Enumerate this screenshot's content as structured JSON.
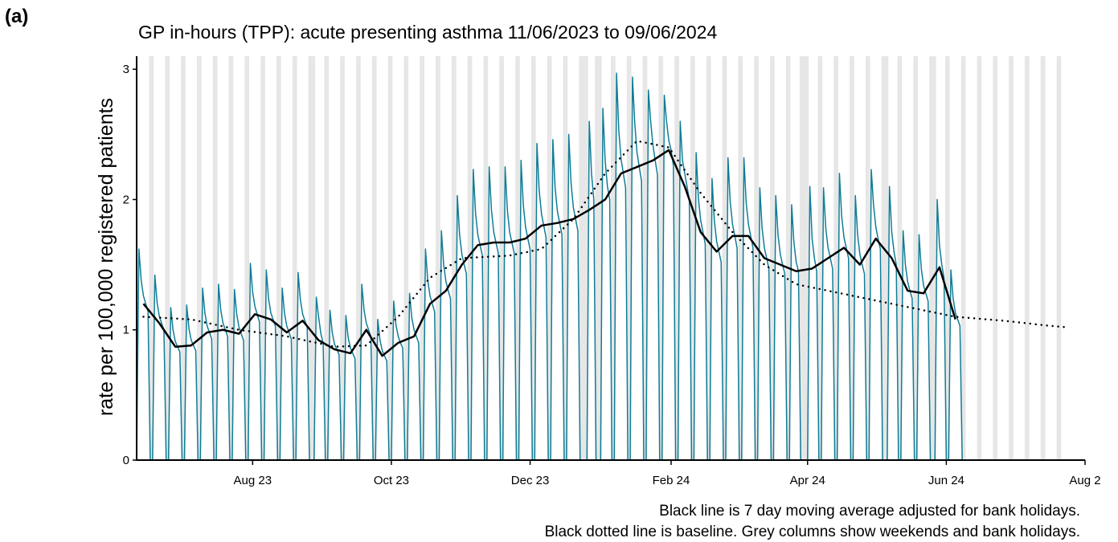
{
  "chart_data": {
    "type": "line",
    "panel_label": "(a)",
    "title": "GP in-hours (TPP): acute presenting asthma 11/06/2023 to 09/06/2024",
    "y_label": "rate per 100,000 registered patients",
    "notes": [
      "Black line is 7 day moving average adjusted for bank holidays.",
      "Black dotted line is baseline. Grey columns show weekends and bank holidays."
    ],
    "xlim": [
      "2023-06-11",
      "2024-08-01"
    ],
    "xticks": [
      {
        "value": "2023-08-01",
        "label": "Aug 23"
      },
      {
        "value": "2023-10-01",
        "label": "Oct 23"
      },
      {
        "value": "2023-12-01",
        "label": "Dec 23"
      },
      {
        "value": "2024-02-01",
        "label": "Feb 24"
      },
      {
        "value": "2024-04-01",
        "label": "Apr 24"
      },
      {
        "value": "2024-06-01",
        "label": "Jun 24"
      },
      {
        "value": "2024-08-01",
        "label": "Aug 2"
      }
    ],
    "ylim": [
      0,
      3.1
    ],
    "yticks": [
      0,
      1,
      2,
      3
    ],
    "shading_color": "#e6e6e6",
    "bank_holidays": [
      "2023-08-28",
      "2023-12-25",
      "2023-12-26",
      "2024-01-01",
      "2024-03-29",
      "2024-04-01",
      "2024-05-06",
      "2024-05-27"
    ],
    "series": [
      {
        "color": "#107d96",
        "style": "solid",
        "width": 1.5,
        "x": [
          "2023-06-11",
          "2023-06-12",
          "2023-06-13",
          "2023-06-14",
          "2023-06-15",
          "2023-06-16",
          "2023-06-17",
          "2023-06-18",
          "2023-06-19",
          "2023-06-20",
          "2023-06-21",
          "2023-06-22",
          "2023-06-23",
          "2023-06-24",
          "2023-06-25",
          "2023-06-26",
          "2023-06-27",
          "2023-06-28",
          "2023-06-29",
          "2023-06-30",
          "2023-07-01",
          "2023-07-02",
          "2023-07-03",
          "2023-07-04",
          "2023-07-05",
          "2023-07-06",
          "2023-07-07",
          "2023-07-08",
          "2023-07-09",
          "2023-07-10",
          "2023-07-11",
          "2023-07-12",
          "2023-07-13",
          "2023-07-14",
          "2023-07-15",
          "2023-07-16",
          "2023-07-17",
          "2023-07-18",
          "2023-07-19",
          "2023-07-20",
          "2023-07-21",
          "2023-07-22",
          "2023-07-23",
          "2023-07-24",
          "2023-07-25",
          "2023-07-26",
          "2023-07-27",
          "2023-07-28",
          "2023-07-29",
          "2023-07-30",
          "2023-07-31",
          "2023-08-01",
          "2023-08-02",
          "2023-08-03",
          "2023-08-04",
          "2023-08-05",
          "2023-08-06",
          "2023-08-07",
          "2023-08-08",
          "2023-08-09",
          "2023-08-10",
          "2023-08-11",
          "2023-08-12",
          "2023-08-13",
          "2023-08-14",
          "2023-08-15",
          "2023-08-16",
          "2023-08-17",
          "2023-08-18",
          "2023-08-19",
          "2023-08-20",
          "2023-08-21",
          "2023-08-22",
          "2023-08-23",
          "2023-08-24",
          "2023-08-25",
          "2023-08-26",
          "2023-08-27",
          "2023-08-28",
          "2023-08-29",
          "2023-08-30",
          "2023-08-31",
          "2023-09-01",
          "2023-09-02",
          "2023-09-03",
          "2023-09-04",
          "2023-09-05",
          "2023-09-06",
          "2023-09-07",
          "2023-09-08",
          "2023-09-09",
          "2023-09-10",
          "2023-09-11",
          "2023-09-12",
          "2023-09-13",
          "2023-09-14",
          "2023-09-15",
          "2023-09-16",
          "2023-09-17",
          "2023-09-18",
          "2023-09-19",
          "2023-09-20",
          "2023-09-21",
          "2023-09-22",
          "2023-09-23",
          "2023-09-24",
          "2023-09-25",
          "2023-09-26",
          "2023-09-27",
          "2023-09-28",
          "2023-09-29",
          "2023-09-30",
          "2023-10-01",
          "2023-10-02",
          "2023-10-03",
          "2023-10-04",
          "2023-10-05",
          "2023-10-06",
          "2023-10-07",
          "2023-10-08",
          "2023-10-09",
          "2023-10-10",
          "2023-10-11",
          "2023-10-12",
          "2023-10-13",
          "2023-10-14",
          "2023-10-15",
          "2023-10-16",
          "2023-10-17",
          "2023-10-18",
          "2023-10-19",
          "2023-10-20",
          "2023-10-21",
          "2023-10-22",
          "2023-10-23",
          "2023-10-24",
          "2023-10-25",
          "2023-10-26",
          "2023-10-27",
          "2023-10-28",
          "2023-10-29",
          "2023-10-30",
          "2023-10-31",
          "2023-11-01",
          "2023-11-02",
          "2023-11-03",
          "2023-11-04",
          "2023-11-05",
          "2023-11-06",
          "2023-11-07",
          "2023-11-08",
          "2023-11-09",
          "2023-11-10",
          "2023-11-11",
          "2023-11-12",
          "2023-11-13",
          "2023-11-14",
          "2023-11-15",
          "2023-11-16",
          "2023-11-17",
          "2023-11-18",
          "2023-11-19",
          "2023-11-20",
          "2023-11-21",
          "2023-11-22",
          "2023-11-23",
          "2023-11-24",
          "2023-11-25",
          "2023-11-26",
          "2023-11-27",
          "2023-11-28",
          "2023-11-29",
          "2023-11-30",
          "2023-12-01",
          "2023-12-02",
          "2023-12-03",
          "2023-12-04",
          "2023-12-05",
          "2023-12-06",
          "2023-12-07",
          "2023-12-08",
          "2023-12-09",
          "2023-12-10",
          "2023-12-11",
          "2023-12-12",
          "2023-12-13",
          "2023-12-14",
          "2023-12-15",
          "2023-12-16",
          "2023-12-17",
          "2023-12-18",
          "2023-12-19",
          "2023-12-20",
          "2023-12-21",
          "2023-12-22",
          "2023-12-23",
          "2023-12-24",
          "2023-12-25",
          "2023-12-26",
          "2023-12-27",
          "2023-12-28",
          "2023-12-29",
          "2023-12-30",
          "2023-12-31",
          "2024-01-01",
          "2024-01-02",
          "2024-01-03",
          "2024-01-04",
          "2024-01-05",
          "2024-01-06",
          "2024-01-07",
          "2024-01-08",
          "2024-01-09",
          "2024-01-10",
          "2024-01-11",
          "2024-01-12",
          "2024-01-13",
          "2024-01-14",
          "2024-01-15",
          "2024-01-16",
          "2024-01-17",
          "2024-01-18",
          "2024-01-19",
          "2024-01-20",
          "2024-01-21",
          "2024-01-22",
          "2024-01-23",
          "2024-01-24",
          "2024-01-25",
          "2024-01-26",
          "2024-01-27",
          "2024-01-28",
          "2024-01-29",
          "2024-01-30",
          "2024-01-31",
          "2024-02-01",
          "2024-02-02",
          "2024-02-03",
          "2024-02-04",
          "2024-02-05",
          "2024-02-06",
          "2024-02-07",
          "2024-02-08",
          "2024-02-09",
          "2024-02-10",
          "2024-02-11",
          "2024-02-12",
          "2024-02-13",
          "2024-02-14",
          "2024-02-15",
          "2024-02-16",
          "2024-02-17",
          "2024-02-18",
          "2024-02-19",
          "2024-02-20",
          "2024-02-21",
          "2024-02-22",
          "2024-02-23",
          "2024-02-24",
          "2024-02-25",
          "2024-02-26",
          "2024-02-27",
          "2024-02-28",
          "2024-02-29",
          "2024-03-01",
          "2024-03-02",
          "2024-03-03",
          "2024-03-04",
          "2024-03-05",
          "2024-03-06",
          "2024-03-07",
          "2024-03-08",
          "2024-03-09",
          "2024-03-10",
          "2024-03-11",
          "2024-03-12",
          "2024-03-13",
          "2024-03-14",
          "2024-03-15",
          "2024-03-16",
          "2024-03-17",
          "2024-03-18",
          "2024-03-19",
          "2024-03-20",
          "2024-03-21",
          "2024-03-22",
          "2024-03-23",
          "2024-03-24",
          "2024-03-25",
          "2024-03-26",
          "2024-03-27",
          "2024-03-28",
          "2024-03-29",
          "2024-03-30",
          "2024-03-31",
          "2024-04-01",
          "2024-04-02",
          "2024-04-03",
          "2024-04-04",
          "2024-04-05",
          "2024-04-06",
          "2024-04-07",
          "2024-04-08",
          "2024-04-09",
          "2024-04-10",
          "2024-04-11",
          "2024-04-12",
          "2024-04-13",
          "2024-04-14",
          "2024-04-15",
          "2024-04-16",
          "2024-04-17",
          "2024-04-18",
          "2024-04-19",
          "2024-04-20",
          "2024-04-21",
          "2024-04-22",
          "2024-04-23",
          "2024-04-24",
          "2024-04-25",
          "2024-04-26",
          "2024-04-27",
          "2024-04-28",
          "2024-04-29",
          "2024-04-30",
          "2024-05-01",
          "2024-05-02",
          "2024-05-03",
          "2024-05-04",
          "2024-05-05",
          "2024-05-06",
          "2024-05-07",
          "2024-05-08",
          "2024-05-09",
          "2024-05-10",
          "2024-05-11",
          "2024-05-12",
          "2024-05-13",
          "2024-05-14",
          "2024-05-15",
          "2024-05-16",
          "2024-05-17",
          "2024-05-18",
          "2024-05-19",
          "2024-05-20",
          "2024-05-21",
          "2024-05-22",
          "2024-05-23",
          "2024-05-24",
          "2024-05-25",
          "2024-05-26",
          "2024-05-27",
          "2024-05-28",
          "2024-05-29",
          "2024-05-30",
          "2024-05-31",
          "2024-06-01",
          "2024-06-02",
          "2024-06-03",
          "2024-06-04",
          "2024-06-05",
          "2024-06-06",
          "2024-06-07",
          "2024-06-08",
          "2024-06-09"
        ],
        "values": [
          0,
          1.62,
          1.38,
          1.26,
          1.2,
          1.14,
          0,
          0,
          1.42,
          1.21,
          1.1,
          1.05,
          1.0,
          0,
          0,
          1.17,
          1.0,
          0.91,
          0.87,
          0.83,
          0,
          0,
          1.19,
          1.01,
          0.92,
          0.88,
          0.84,
          0,
          0,
          1.32,
          1.13,
          1.03,
          0.98,
          0.93,
          0,
          0,
          1.35,
          1.15,
          1.05,
          1.0,
          0.95,
          0,
          0,
          1.31,
          1.12,
          1.02,
          0.97,
          0.92,
          0,
          0,
          1.51,
          1.29,
          1.18,
          1.12,
          1.06,
          0,
          0,
          1.46,
          1.24,
          1.13,
          1.08,
          1.03,
          0,
          0,
          1.32,
          1.13,
          1.03,
          0.98,
          0.93,
          0,
          0,
          1.44,
          1.23,
          1.12,
          1.07,
          1.02,
          0,
          0,
          0,
          1.25,
          1.1,
          0.97,
          0.9,
          0,
          0,
          1.15,
          0.98,
          0.89,
          0.85,
          0.81,
          0,
          0,
          1.11,
          0.94,
          0.86,
          0.82,
          0.78,
          0,
          0,
          1.35,
          1.15,
          1.05,
          1.0,
          0.95,
          0,
          0,
          1.08,
          0.92,
          0.84,
          0.8,
          0.76,
          0,
          0,
          1.22,
          1.04,
          0.95,
          0.9,
          0.86,
          0,
          0,
          1.28,
          1.09,
          1.0,
          0.95,
          0.9,
          0,
          0,
          1.62,
          1.38,
          1.26,
          1.2,
          1.14,
          0,
          0,
          1.76,
          1.5,
          1.37,
          1.3,
          1.24,
          0,
          0,
          2.03,
          1.73,
          1.58,
          1.5,
          1.43,
          0,
          0,
          2.23,
          1.9,
          1.73,
          1.65,
          1.57,
          0,
          0,
          2.25,
          1.92,
          1.75,
          1.67,
          1.59,
          0,
          0,
          2.25,
          1.92,
          1.75,
          1.67,
          1.59,
          0,
          0,
          2.3,
          1.96,
          1.79,
          1.7,
          1.62,
          0,
          0,
          2.43,
          2.07,
          1.89,
          1.8,
          1.71,
          0,
          0,
          2.46,
          2.09,
          1.91,
          1.82,
          1.73,
          0,
          0,
          2.5,
          2.13,
          1.94,
          1.85,
          1.76,
          0,
          0,
          0,
          0,
          2.6,
          2.2,
          2.0,
          0,
          0,
          0,
          2.7,
          2.3,
          2.1,
          2.0,
          0,
          0,
          2.97,
          2.53,
          2.31,
          2.2,
          2.09,
          0,
          0,
          2.94,
          2.59,
          2.36,
          2.25,
          2.14,
          0,
          0,
          2.84,
          2.6,
          2.42,
          2.3,
          2.19,
          0,
          0,
          2.8,
          2.6,
          2.45,
          2.38,
          2.26,
          0,
          0,
          2.6,
          2.3,
          2.2,
          2.1,
          2.0,
          0,
          0,
          2.36,
          2.01,
          1.84,
          1.75,
          1.66,
          0,
          0,
          2.16,
          1.84,
          1.68,
          1.6,
          1.52,
          0,
          0,
          2.32,
          1.98,
          1.81,
          1.72,
          1.63,
          0,
          0,
          2.32,
          1.98,
          1.81,
          1.72,
          1.63,
          0,
          0,
          2.09,
          1.78,
          1.63,
          1.55,
          1.47,
          0,
          0,
          2.03,
          1.73,
          1.58,
          1.5,
          1.43,
          0,
          0,
          1.96,
          1.67,
          1.52,
          1.45,
          0,
          0,
          0,
          0,
          2.1,
          1.7,
          1.55,
          1.45,
          0,
          0,
          2.09,
          1.78,
          1.63,
          1.55,
          1.47,
          0,
          0,
          2.2,
          1.87,
          1.71,
          1.63,
          1.55,
          0,
          0,
          2.03,
          1.73,
          1.58,
          1.5,
          1.43,
          0,
          0,
          2.23,
          1.96,
          1.79,
          1.7,
          1.62,
          0,
          0,
          0,
          2.1,
          1.75,
          1.6,
          1.5,
          0,
          0,
          1.76,
          1.5,
          1.37,
          1.3,
          1.24,
          0,
          0,
          1.73,
          1.47,
          1.34,
          1.28,
          1.22,
          0,
          0,
          0,
          2.0,
          1.65,
          1.5,
          1.4,
          0,
          0,
          1.46,
          1.24,
          1.13,
          1.08,
          1.03,
          0,
          0
        ]
      },
      {
        "color": "#000000",
        "style": "solid",
        "width": 2.5,
        "x": [
          "2023-06-14",
          "2023-06-21",
          "2023-06-28",
          "2023-07-05",
          "2023-07-12",
          "2023-07-19",
          "2023-07-26",
          "2023-08-02",
          "2023-08-09",
          "2023-08-16",
          "2023-08-23",
          "2023-08-30",
          "2023-09-06",
          "2023-09-13",
          "2023-09-20",
          "2023-09-27",
          "2023-10-04",
          "2023-10-11",
          "2023-10-18",
          "2023-10-25",
          "2023-11-01",
          "2023-11-08",
          "2023-11-15",
          "2023-11-22",
          "2023-11-29",
          "2023-12-06",
          "2023-12-13",
          "2023-12-20",
          "2023-12-27",
          "2024-01-03",
          "2024-01-10",
          "2024-01-17",
          "2024-01-24",
          "2024-01-31",
          "2024-02-07",
          "2024-02-14",
          "2024-02-21",
          "2024-02-28",
          "2024-03-06",
          "2024-03-13",
          "2024-03-20",
          "2024-03-27",
          "2024-04-03",
          "2024-04-10",
          "2024-04-17",
          "2024-04-24",
          "2024-05-01",
          "2024-05-08",
          "2024-05-15",
          "2024-05-22",
          "2024-05-29",
          "2024-06-05"
        ],
        "values": [
          1.2,
          1.05,
          0.87,
          0.88,
          0.98,
          1.0,
          0.97,
          1.12,
          1.08,
          0.98,
          1.07,
          0.92,
          0.85,
          0.82,
          1.0,
          0.8,
          0.9,
          0.95,
          1.2,
          1.3,
          1.5,
          1.65,
          1.67,
          1.67,
          1.7,
          1.8,
          1.82,
          1.85,
          1.92,
          2.0,
          2.2,
          2.25,
          2.3,
          2.38,
          2.1,
          1.75,
          1.6,
          1.72,
          1.72,
          1.55,
          1.5,
          1.45,
          1.47,
          1.55,
          1.63,
          1.5,
          1.7,
          1.55,
          1.3,
          1.28,
          1.48,
          1.08
        ]
      },
      {
        "color": "#000000",
        "style": "dotted",
        "width": 2.5,
        "x": [
          "2023-06-14",
          "2023-07-05",
          "2023-07-26",
          "2023-08-16",
          "2023-09-06",
          "2023-09-20",
          "2023-10-04",
          "2023-10-18",
          "2023-11-01",
          "2023-11-22",
          "2023-12-06",
          "2023-12-20",
          "2024-01-03",
          "2024-01-17",
          "2024-01-31",
          "2024-02-14",
          "2024-02-28",
          "2024-03-13",
          "2024-03-27",
          "2024-04-10",
          "2024-04-24",
          "2024-05-08",
          "2024-05-22",
          "2024-06-05",
          "2024-06-26",
          "2024-07-17",
          "2024-07-24"
        ],
        "values": [
          1.1,
          1.08,
          1.0,
          0.95,
          0.87,
          0.88,
          1.1,
          1.4,
          1.55,
          1.57,
          1.62,
          1.85,
          2.2,
          2.45,
          2.4,
          2.05,
          1.75,
          1.5,
          1.35,
          1.3,
          1.25,
          1.2,
          1.15,
          1.1,
          1.07,
          1.03,
          1.02
        ]
      }
    ]
  }
}
